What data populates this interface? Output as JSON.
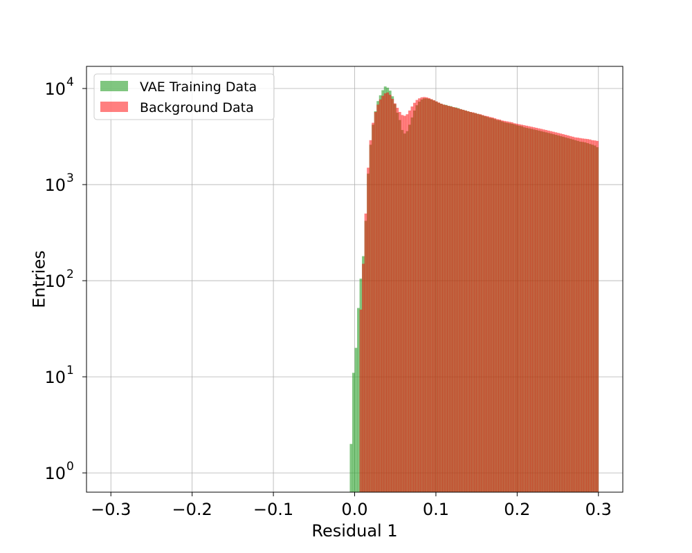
{
  "chart_data": {
    "type": "bar",
    "subtype": "overlaid-histogram",
    "title": "",
    "xlabel": "Residual 1",
    "ylabel": "Entries",
    "xlim": [
      -0.33,
      0.33
    ],
    "ylim": [
      0.63,
      17000
    ],
    "yscale": "log",
    "grid": true,
    "legend_position": "top-left",
    "x_ticks": [
      "−0.3",
      "−0.2",
      "−0.1",
      "0.0",
      "0.1",
      "0.2",
      "0.3"
    ],
    "x_tick_values": [
      -0.3,
      -0.2,
      -0.1,
      0.0,
      0.1,
      0.2,
      0.3
    ],
    "y_ticks": [
      {
        "value": 1,
        "base": "10",
        "exp": "0"
      },
      {
        "value": 10,
        "base": "10",
        "exp": "1"
      },
      {
        "value": 100,
        "base": "10",
        "exp": "2"
      },
      {
        "value": 1000,
        "base": "10",
        "exp": "3"
      },
      {
        "value": 10000,
        "base": "10",
        "exp": "4"
      }
    ],
    "bin_width": 0.003,
    "series": [
      {
        "name": "VAE Training Data",
        "color": "#2ca02c",
        "opacity": 0.6,
        "bins": [
          [
            -0.006,
            2
          ],
          [
            -0.003,
            11
          ],
          [
            0.0,
            20
          ],
          [
            0.003,
            52
          ],
          [
            0.006,
            105
          ],
          [
            0.009,
            180
          ],
          [
            0.012,
            420
          ],
          [
            0.015,
            1300
          ],
          [
            0.018,
            2600
          ],
          [
            0.021,
            4200
          ],
          [
            0.024,
            5800
          ],
          [
            0.027,
            7400
          ],
          [
            0.03,
            8500
          ],
          [
            0.033,
            9600
          ],
          [
            0.036,
            10500
          ],
          [
            0.039,
            10200
          ],
          [
            0.042,
            9500
          ],
          [
            0.045,
            8300
          ],
          [
            0.048,
            6900
          ],
          [
            0.051,
            5600
          ],
          [
            0.054,
            4700
          ],
          [
            0.057,
            3700
          ],
          [
            0.06,
            3400
          ],
          [
            0.063,
            3600
          ],
          [
            0.066,
            4200
          ],
          [
            0.069,
            5000
          ],
          [
            0.072,
            5900
          ],
          [
            0.075,
            6700
          ],
          [
            0.078,
            7300
          ],
          [
            0.081,
            7700
          ],
          [
            0.084,
            7900
          ],
          [
            0.087,
            7900
          ],
          [
            0.09,
            7800
          ],
          [
            0.093,
            7700
          ],
          [
            0.096,
            7500
          ],
          [
            0.099,
            7300
          ],
          [
            0.102,
            7100
          ],
          [
            0.105,
            6950
          ],
          [
            0.108,
            6800
          ],
          [
            0.111,
            6750
          ],
          [
            0.114,
            6600
          ],
          [
            0.117,
            6550
          ],
          [
            0.12,
            6400
          ],
          [
            0.123,
            6350
          ],
          [
            0.126,
            6250
          ],
          [
            0.129,
            6100
          ],
          [
            0.132,
            6000
          ],
          [
            0.135,
            5900
          ],
          [
            0.138,
            5800
          ],
          [
            0.141,
            5700
          ],
          [
            0.144,
            5600
          ],
          [
            0.147,
            5550
          ],
          [
            0.15,
            5450
          ],
          [
            0.153,
            5350
          ],
          [
            0.156,
            5250
          ],
          [
            0.159,
            5150
          ],
          [
            0.162,
            5050
          ],
          [
            0.165,
            4950
          ],
          [
            0.168,
            4900
          ],
          [
            0.171,
            4800
          ],
          [
            0.174,
            4700
          ],
          [
            0.177,
            4650
          ],
          [
            0.18,
            4550
          ],
          [
            0.183,
            4450
          ],
          [
            0.186,
            4400
          ],
          [
            0.189,
            4350
          ],
          [
            0.192,
            4300
          ],
          [
            0.195,
            4250
          ],
          [
            0.198,
            4150
          ],
          [
            0.201,
            4100
          ],
          [
            0.204,
            4050
          ],
          [
            0.207,
            3950
          ],
          [
            0.21,
            3900
          ],
          [
            0.213,
            3850
          ],
          [
            0.216,
            3800
          ],
          [
            0.219,
            3750
          ],
          [
            0.222,
            3700
          ],
          [
            0.225,
            3650
          ],
          [
            0.228,
            3600
          ],
          [
            0.231,
            3550
          ],
          [
            0.234,
            3500
          ],
          [
            0.237,
            3450
          ],
          [
            0.24,
            3400
          ],
          [
            0.243,
            3350
          ],
          [
            0.246,
            3300
          ],
          [
            0.249,
            3250
          ],
          [
            0.252,
            3200
          ],
          [
            0.255,
            3150
          ],
          [
            0.258,
            3100
          ],
          [
            0.261,
            3050
          ],
          [
            0.264,
            3000
          ],
          [
            0.267,
            2950
          ],
          [
            0.27,
            2900
          ],
          [
            0.273,
            2850
          ],
          [
            0.276,
            2800
          ],
          [
            0.279,
            2780
          ],
          [
            0.282,
            2750
          ],
          [
            0.285,
            2700
          ],
          [
            0.288,
            2650
          ],
          [
            0.291,
            2600
          ],
          [
            0.294,
            2550
          ],
          [
            0.297,
            2450
          ]
        ]
      },
      {
        "name": "Background Data",
        "color": "#ff0000",
        "opacity": 0.5,
        "bins": [
          [
            0.006,
            50
          ],
          [
            0.009,
            150
          ],
          [
            0.012,
            500
          ],
          [
            0.015,
            1500
          ],
          [
            0.018,
            2900
          ],
          [
            0.021,
            4400
          ],
          [
            0.024,
            5700
          ],
          [
            0.027,
            6800
          ],
          [
            0.03,
            7700
          ],
          [
            0.033,
            8400
          ],
          [
            0.036,
            8900
          ],
          [
            0.039,
            9100
          ],
          [
            0.042,
            8600
          ],
          [
            0.045,
            7800
          ],
          [
            0.048,
            7000
          ],
          [
            0.051,
            6300
          ],
          [
            0.054,
            5700
          ],
          [
            0.057,
            5300
          ],
          [
            0.06,
            5200
          ],
          [
            0.063,
            5400
          ],
          [
            0.066,
            5900
          ],
          [
            0.069,
            6500
          ],
          [
            0.072,
            7100
          ],
          [
            0.075,
            7600
          ],
          [
            0.078,
            7900
          ],
          [
            0.081,
            8100
          ],
          [
            0.084,
            8150
          ],
          [
            0.087,
            8100
          ],
          [
            0.09,
            7950
          ],
          [
            0.093,
            7750
          ],
          [
            0.096,
            7550
          ],
          [
            0.099,
            7350
          ],
          [
            0.102,
            7150
          ],
          [
            0.105,
            6950
          ],
          [
            0.108,
            6800
          ],
          [
            0.111,
            6700
          ],
          [
            0.114,
            6600
          ],
          [
            0.117,
            6500
          ],
          [
            0.12,
            6400
          ],
          [
            0.123,
            6300
          ],
          [
            0.126,
            6200
          ],
          [
            0.129,
            6100
          ],
          [
            0.132,
            6000
          ],
          [
            0.135,
            5900
          ],
          [
            0.138,
            5800
          ],
          [
            0.141,
            5700
          ],
          [
            0.144,
            5650
          ],
          [
            0.147,
            5550
          ],
          [
            0.15,
            5450
          ],
          [
            0.153,
            5400
          ],
          [
            0.156,
            5300
          ],
          [
            0.159,
            5200
          ],
          [
            0.162,
            5150
          ],
          [
            0.165,
            5050
          ],
          [
            0.168,
            5000
          ],
          [
            0.171,
            4900
          ],
          [
            0.174,
            4800
          ],
          [
            0.177,
            4750
          ],
          [
            0.18,
            4650
          ],
          [
            0.183,
            4600
          ],
          [
            0.186,
            4550
          ],
          [
            0.189,
            4500
          ],
          [
            0.192,
            4450
          ],
          [
            0.195,
            4350
          ],
          [
            0.198,
            4300
          ],
          [
            0.201,
            4250
          ],
          [
            0.204,
            4200
          ],
          [
            0.207,
            4150
          ],
          [
            0.21,
            4100
          ],
          [
            0.213,
            4050
          ],
          [
            0.216,
            4000
          ],
          [
            0.219,
            3950
          ],
          [
            0.222,
            3900
          ],
          [
            0.225,
            3850
          ],
          [
            0.228,
            3800
          ],
          [
            0.231,
            3750
          ],
          [
            0.234,
            3700
          ],
          [
            0.237,
            3650
          ],
          [
            0.24,
            3600
          ],
          [
            0.243,
            3550
          ],
          [
            0.246,
            3500
          ],
          [
            0.249,
            3450
          ],
          [
            0.252,
            3400
          ],
          [
            0.255,
            3350
          ],
          [
            0.258,
            3300
          ],
          [
            0.261,
            3250
          ],
          [
            0.264,
            3200
          ],
          [
            0.267,
            3150
          ],
          [
            0.27,
            3100
          ],
          [
            0.273,
            3080
          ],
          [
            0.276,
            3050
          ],
          [
            0.279,
            3020
          ],
          [
            0.282,
            3000
          ],
          [
            0.285,
            2980
          ],
          [
            0.288,
            2950
          ],
          [
            0.291,
            2900
          ],
          [
            0.294,
            2880
          ],
          [
            0.297,
            2850
          ]
        ]
      }
    ]
  }
}
